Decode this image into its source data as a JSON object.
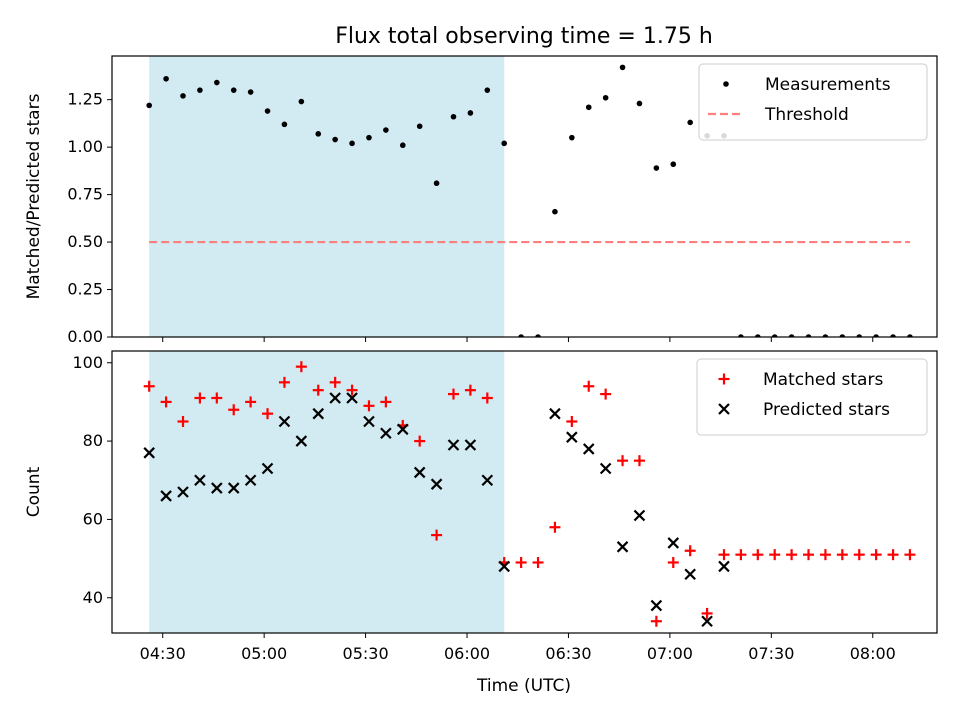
{
  "chart_data": {
    "title": "Flux total observing time = 1.75 h",
    "xlabel": "Time (UTC)",
    "x_ticks": [
      "04:30",
      "05:00",
      "05:30",
      "06:00",
      "06:30",
      "07:00",
      "07:30",
      "08:00"
    ],
    "highlight_span": {
      "start": "04:26",
      "end": "06:11",
      "color": "#add8e6"
    },
    "panels": [
      {
        "type": "scatter",
        "ylabel": "Matched/Predicted stars",
        "ylim": [
          0,
          1.48
        ],
        "y_ticks": [
          "0.00",
          "0.25",
          "0.50",
          "0.75",
          "1.00",
          "1.25"
        ],
        "legend_position": "top-right",
        "series": [
          {
            "name": "Measurements",
            "marker": "dot",
            "color": "#000000",
            "x": [
              "04:26",
              "04:31",
              "04:36",
              "04:41",
              "04:46",
              "04:51",
              "04:56",
              "05:01",
              "05:06",
              "05:11",
              "05:16",
              "05:21",
              "05:26",
              "05:31",
              "05:36",
              "05:41",
              "05:46",
              "05:51",
              "05:56",
              "06:01",
              "06:06",
              "06:11",
              "06:16",
              "06:21",
              "06:26",
              "06:31",
              "06:36",
              "06:41",
              "06:46",
              "06:51",
              "06:56",
              "07:01",
              "07:06",
              "07:11",
              "07:16",
              "07:21",
              "07:26",
              "07:31",
              "07:36",
              "07:41",
              "07:46",
              "07:51",
              "07:56",
              "08:01",
              "08:06",
              "08:11"
            ],
            "y": [
              1.22,
              1.36,
              1.27,
              1.3,
              1.34,
              1.3,
              1.29,
              1.19,
              1.12,
              1.24,
              1.07,
              1.04,
              1.02,
              1.05,
              1.09,
              1.01,
              1.11,
              0.81,
              1.16,
              1.18,
              1.3,
              1.02,
              0,
              0,
              0.66,
              1.05,
              1.21,
              1.26,
              1.42,
              1.23,
              0.89,
              0.91,
              1.13,
              1.06,
              1.06,
              0,
              0,
              0,
              0,
              0,
              0,
              0,
              0,
              0,
              0,
              0
            ]
          },
          {
            "name": "Threshold",
            "type": "hline",
            "y": 0.5,
            "x_range": [
              "04:26",
              "08:11"
            ],
            "color": "#ff7f7f"
          }
        ]
      },
      {
        "type": "scatter",
        "ylabel": "Count",
        "ylim": [
          31,
          103
        ],
        "y_ticks": [
          "40",
          "60",
          "80",
          "100"
        ],
        "legend_position": "top-right",
        "series": [
          {
            "name": "Matched stars",
            "marker": "plus",
            "color": "#ff0000",
            "x": [
              "04:26",
              "04:31",
              "04:36",
              "04:41",
              "04:46",
              "04:51",
              "04:56",
              "05:01",
              "05:06",
              "05:11",
              "05:16",
              "05:21",
              "05:26",
              "05:31",
              "05:36",
              "05:41",
              "05:46",
              "05:51",
              "05:56",
              "06:01",
              "06:06",
              "06:11",
              "06:16",
              "06:21",
              "06:26",
              "06:31",
              "06:36",
              "06:41",
              "06:46",
              "06:51",
              "06:56",
              "07:01",
              "07:06",
              "07:11",
              "07:16",
              "07:21",
              "07:26",
              "07:31",
              "07:36",
              "07:41",
              "07:46",
              "07:51",
              "07:56",
              "08:01",
              "08:06",
              "08:11"
            ],
            "y": [
              94,
              90,
              85,
              91,
              91,
              88,
              90,
              87,
              95,
              99,
              93,
              95,
              93,
              89,
              90,
              84,
              80,
              56,
              92,
              93,
              91,
              49,
              49,
              49,
              58,
              85,
              94,
              92,
              75,
              75,
              34,
              49,
              52,
              36,
              51,
              51,
              51,
              51,
              51,
              51,
              51,
              51,
              51,
              51,
              51,
              51
            ]
          },
          {
            "name": "Predicted stars",
            "marker": "x",
            "color": "#000000",
            "x": [
              "04:26",
              "04:31",
              "04:36",
              "04:41",
              "04:46",
              "04:51",
              "04:56",
              "05:01",
              "05:06",
              "05:11",
              "05:16",
              "05:21",
              "05:26",
              "05:31",
              "05:36",
              "05:41",
              "05:46",
              "05:51",
              "05:56",
              "06:01",
              "06:06",
              "06:11",
              "06:26",
              "06:31",
              "06:36",
              "06:41",
              "06:46",
              "06:51",
              "06:56",
              "07:01",
              "07:06",
              "07:11",
              "07:16"
            ],
            "y": [
              77,
              66,
              67,
              70,
              68,
              68,
              70,
              73,
              85,
              80,
              87,
              91,
              91,
              85,
              82,
              83,
              72,
              69,
              79,
              79,
              70,
              48,
              87,
              81,
              78,
              73,
              53,
              61,
              38,
              54,
              46,
              34,
              48
            ]
          }
        ]
      }
    ]
  }
}
